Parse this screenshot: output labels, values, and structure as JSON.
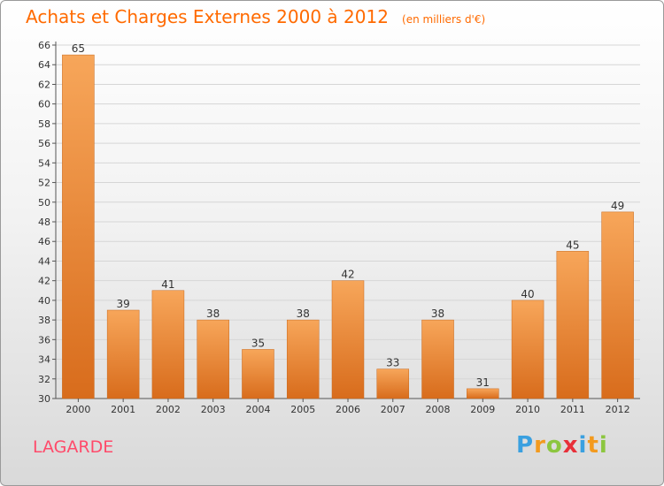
{
  "title": "Achats et Charges Externes 2000 à 2012",
  "subtitle": "(en milliers d'€)",
  "commune": "LAGARDE",
  "brand": {
    "letters": [
      "P",
      "r",
      "o",
      "x",
      "i",
      "t",
      "i"
    ],
    "colors": [
      "#3aa0e0",
      "#f39a1e",
      "#8cc63f",
      "#e8303a",
      "#3aa0e0",
      "#f39a1e",
      "#8cc63f"
    ]
  },
  "colors": {
    "title": "#ff6a00",
    "commune": "#ff4a6a",
    "bar_top": "#f7a65a",
    "bar_bottom": "#d86c1c"
  },
  "chart_data": {
    "type": "bar",
    "title": "Achats et Charges Externes 2000 à 2012",
    "subtitle": "(en milliers d'€)",
    "categories": [
      "2000",
      "2001",
      "2002",
      "2003",
      "2004",
      "2005",
      "2006",
      "2007",
      "2008",
      "2009",
      "2010",
      "2011",
      "2012"
    ],
    "values": [
      65,
      39,
      41,
      38,
      35,
      38,
      42,
      33,
      38,
      31,
      40,
      45,
      49
    ],
    "ylim": [
      30,
      66
    ],
    "yticks": [
      30,
      32,
      34,
      36,
      38,
      40,
      42,
      44,
      46,
      48,
      50,
      52,
      54,
      56,
      58,
      60,
      62,
      64,
      66
    ],
    "grid": true,
    "data_labels": true
  }
}
